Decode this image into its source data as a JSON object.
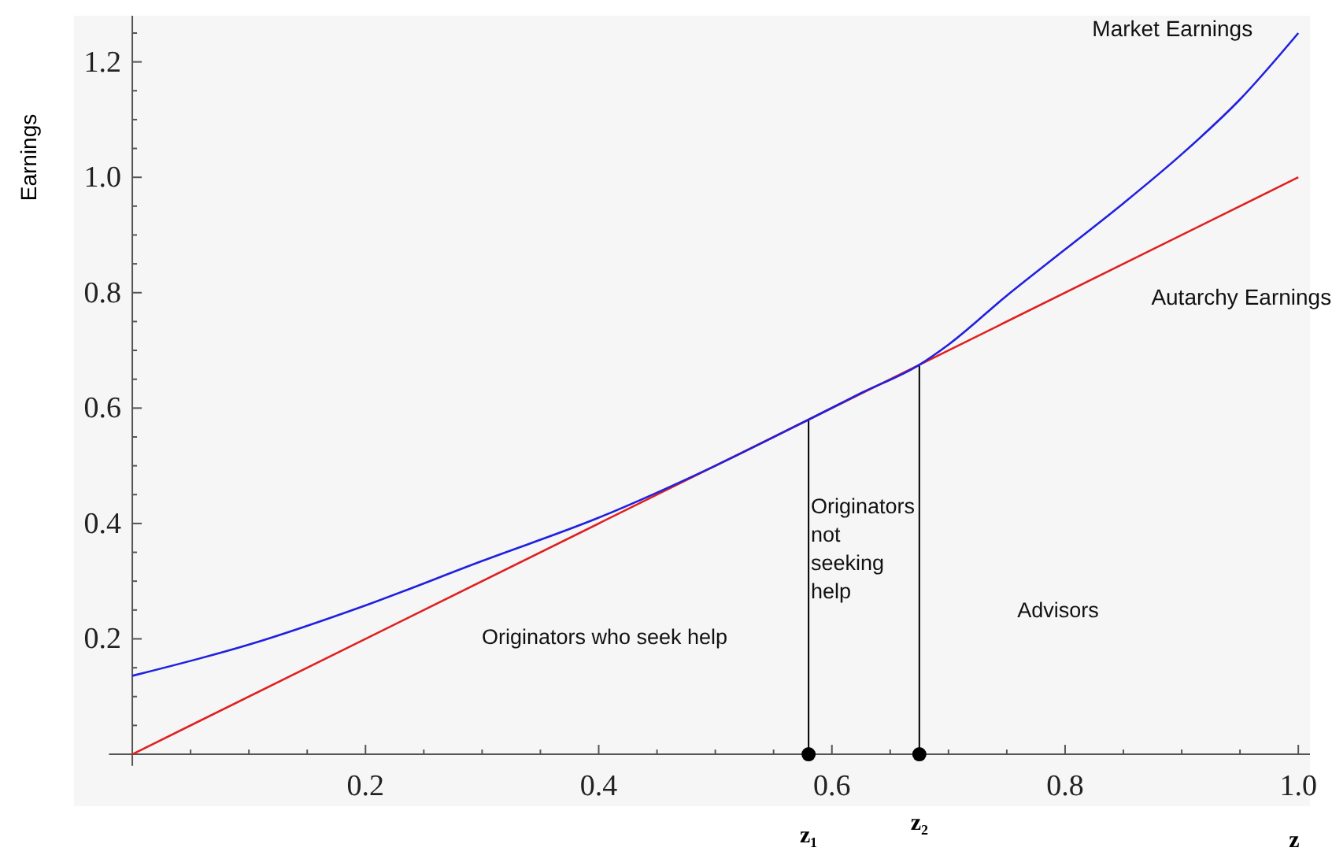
{
  "chart_data": {
    "type": "line",
    "ylabel": "Earnings",
    "xlabel": "z",
    "xlim": [
      -0.05,
      1.01
    ],
    "ylim": [
      -0.09,
      1.28
    ],
    "xticks": [
      {
        "value": 0.05,
        "label": null
      },
      {
        "value": 0.1,
        "label": null
      },
      {
        "value": 0.15,
        "label": null
      },
      0.2,
      {
        "value": 0.25,
        "label": null
      },
      {
        "value": 0.3,
        "label": null
      },
      {
        "value": 0.35,
        "label": null
      },
      0.4,
      {
        "value": 0.45,
        "label": null
      },
      {
        "value": 0.5,
        "label": null
      },
      {
        "value": 0.55,
        "label": null
      },
      0.6,
      {
        "value": 0.65,
        "label": null
      },
      {
        "value": 0.7,
        "label": null
      },
      {
        "value": 0.75,
        "label": null
      },
      0.8,
      {
        "value": 0.85,
        "label": null
      },
      {
        "value": 0.9,
        "label": null
      },
      {
        "value": 0.95,
        "label": null
      },
      {
        "value": 1,
        "label": "1.0"
      }
    ],
    "yticks": [
      {
        "value": 0.05,
        "label": null
      },
      {
        "value": 0.1,
        "label": null
      },
      {
        "value": 0.15,
        "label": null
      },
      0.2,
      {
        "value": 0.25,
        "label": null
      },
      {
        "value": 0.3,
        "label": null
      },
      {
        "value": 0.35,
        "label": null
      },
      0.4,
      {
        "value": 0.45,
        "label": null
      },
      {
        "value": 0.5,
        "label": null
      },
      {
        "value": 0.55,
        "label": null
      },
      0.6,
      {
        "value": 0.65,
        "label": null
      },
      {
        "value": 0.7,
        "label": null
      },
      {
        "value": 0.75,
        "label": null
      },
      0.8,
      {
        "value": 0.85,
        "label": null
      },
      {
        "value": 0.9,
        "label": null
      },
      {
        "value": 0.95,
        "label": null
      },
      {
        "value": 1,
        "label": "1.0"
      },
      {
        "value": 1.05,
        "label": null
      },
      {
        "value": 1.1,
        "label": null
      },
      {
        "value": 1.15,
        "label": null
      },
      1.2,
      {
        "value": 1.25,
        "label": null
      }
    ],
    "grid": false,
    "marker": "none",
    "line_style": "solid",
    "series": [
      {
        "name": "Market Earnings",
        "color": "#2020e0",
        "x": [
          0,
          0.1,
          0.2,
          0.3,
          0.4,
          0.5,
          0.58,
          0.625,
          0.675,
          0.7,
          0.75,
          0.8,
          0.85,
          0.9,
          0.95,
          1.0
        ],
        "values": [
          0.136,
          0.19,
          0.258,
          0.335,
          0.41,
          0.5,
          0.58,
          0.626,
          0.675,
          0.71,
          0.795,
          0.875,
          0.955,
          1.04,
          1.135,
          1.25
        ]
      },
      {
        "name": "Autarchy Earnings",
        "color": "#e02020",
        "x": [
          0,
          1.0
        ],
        "values": [
          0,
          1.0
        ]
      },
      {
        "type": "line",
        "color": "#000000",
        "x": [
          0.58,
          0.58
        ],
        "values": [
          0,
          0.58
        ]
      },
      {
        "type": "line",
        "color": "#000000",
        "x": [
          0.675,
          0.675
        ],
        "values": [
          0,
          0.675
        ]
      },
      {
        "type": "scatter",
        "color": "#000000",
        "marker": "circle",
        "x": [
          0.58,
          0.675
        ],
        "values": [
          0,
          0
        ]
      }
    ],
    "annotations": [
      "Originators who seek help",
      "Originators\nnot\nseeking\nhelp",
      "Advisors",
      {
        "text": "z₁",
        "x": 0.58,
        "y": 0
      },
      {
        "text": "z₂",
        "x": 0.675,
        "y": 0
      }
    ]
  }
}
